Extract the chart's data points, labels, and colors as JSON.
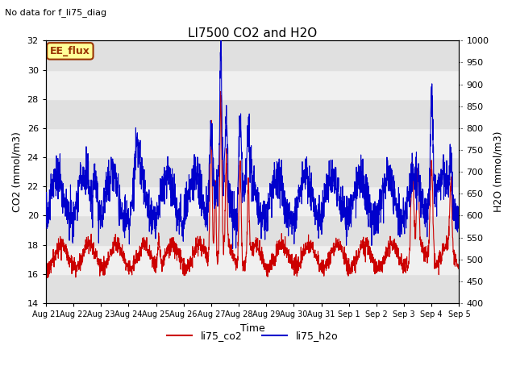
{
  "title": "LI7500 CO2 and H2O",
  "subtitle": "No data for f_li75_diag",
  "xlabel": "Time",
  "ylabel_left": "CO2 (mmol/m3)",
  "ylabel_right": "H2O (mmol/m3)",
  "ylim_left": [
    14,
    32
  ],
  "ylim_right": [
    400,
    1000
  ],
  "yticks_left": [
    14,
    16,
    18,
    20,
    22,
    24,
    26,
    28,
    30,
    32
  ],
  "yticks_right": [
    400,
    450,
    500,
    550,
    600,
    650,
    700,
    750,
    800,
    850,
    900,
    950,
    1000
  ],
  "xtick_labels": [
    "Aug 21",
    "Aug 22",
    "Aug 23",
    "Aug 24",
    "Aug 25",
    "Aug 26",
    "Aug 27",
    "Aug 28",
    "Aug 29",
    "Aug 30",
    "Aug 31",
    "Sep 1",
    "Sep 2",
    "Sep 3",
    "Sep 4",
    "Sep 5"
  ],
  "legend_entries": [
    "li75_co2",
    "li75_h2o"
  ],
  "co2_color": "#cc0000",
  "h2o_color": "#0000cc",
  "box_label": "EE_flux",
  "box_fc": "#ffff99",
  "box_ec": "#993300",
  "box_text_color": "#993300",
  "band_color_dark": "#e0e0e0",
  "band_color_light": "#f0f0f0",
  "title_fontsize": 11,
  "subtitle_fontsize": 8,
  "axis_label_fontsize": 9,
  "tick_fontsize": 8
}
